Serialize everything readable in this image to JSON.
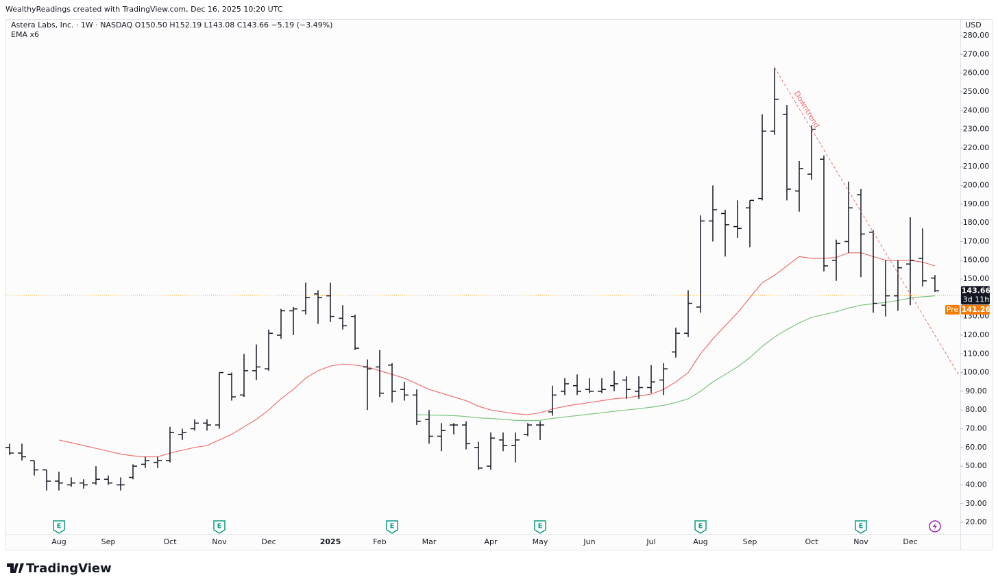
{
  "header": "WealthyReadings created with TradingView.com, Dec 16, 2025 10:20 UTC",
  "brand": "TradingView",
  "chart_data": {
    "type": "ohlc",
    "legend_line": "Astera Labs, Inc. · 1W · NASDAQ  O150.50  H152.19  L143.08  C143.66  −5.19 (−3.49%)",
    "indicator": "EMA x6",
    "currency": "USD",
    "categories": [
      null,
      null,
      null,
      null,
      "Aug",
      null,
      null,
      null,
      "Sep",
      null,
      null,
      null,
      null,
      "Oct",
      null,
      null,
      null,
      "Nov",
      null,
      null,
      null,
      "Dec",
      null,
      null,
      null,
      null,
      "2025",
      null,
      null,
      null,
      "Feb",
      null,
      null,
      null,
      "Mar",
      null,
      null,
      null,
      null,
      "Apr",
      null,
      null,
      null,
      "May",
      null,
      null,
      null,
      "Jun",
      null,
      null,
      null,
      null,
      "Jul",
      null,
      null,
      null,
      "Aug",
      null,
      null,
      null,
      "Sep",
      null,
      null,
      null,
      null,
      "Oct",
      null,
      null,
      null,
      "Nov",
      null,
      null,
      null,
      "Dec",
      null,
      null
    ],
    "open": [
      60,
      57,
      53,
      48,
      42,
      40,
      41,
      41,
      43,
      40,
      44,
      51,
      52,
      53,
      67,
      70,
      73,
      72,
      99,
      88,
      101,
      102,
      120,
      133,
      133,
      142,
      141,
      129,
      130,
      103,
      103,
      104,
      91,
      88,
      75,
      66,
      72,
      72,
      60,
      50,
      64,
      61,
      67,
      72,
      79,
      90,
      93,
      91,
      90,
      93,
      96,
      90,
      92,
      96,
      111,
      121,
      135,
      181,
      185,
      178,
      188,
      193,
      229,
      238,
      197,
      206,
      214,
      160,
      170,
      195,
      175,
      136,
      141,
      158,
      161,
      150.5
    ],
    "high": [
      62,
      62,
      53,
      48,
      47,
      44,
      43,
      50,
      45,
      44,
      51,
      55,
      55,
      71,
      70,
      75,
      75,
      100,
      100,
      110,
      115,
      123,
      134,
      135,
      148,
      144,
      148,
      136,
      131,
      107,
      112,
      105,
      95,
      91,
      80,
      73,
      73,
      74,
      63,
      68,
      68,
      68,
      73,
      74,
      93,
      97,
      99,
      97,
      97,
      101,
      98,
      98,
      104,
      105,
      124,
      144,
      184,
      200,
      187,
      192,
      192,
      238,
      263,
      243,
      213,
      232,
      216,
      171,
      202,
      198,
      176,
      160,
      160,
      183,
      177,
      152.19
    ],
    "low": [
      56,
      53,
      45,
      37,
      37,
      39,
      38,
      40,
      40,
      37,
      43,
      49,
      49,
      52,
      64,
      69,
      69,
      70,
      85,
      87,
      96,
      101,
      118,
      120,
      131,
      126,
      127,
      123,
      112,
      80,
      87,
      84,
      85,
      72,
      62,
      58,
      67,
      59,
      48,
      48,
      58,
      52,
      66,
      64,
      77,
      88,
      88,
      89,
      89,
      90,
      86,
      86,
      89,
      88,
      108,
      119,
      132,
      170,
      162,
      172,
      167,
      192,
      227,
      192,
      186,
      203,
      154,
      149,
      164,
      151,
      132,
      130,
      133,
      136,
      146,
      143.08
    ],
    "close": [
      57,
      55,
      48,
      42,
      41,
      41,
      40,
      43,
      41,
      40,
      50,
      53,
      53,
      68,
      68,
      73,
      72,
      100,
      87,
      101,
      103,
      121,
      133,
      134,
      140,
      140,
      130,
      125,
      113,
      102,
      89,
      90,
      88,
      74,
      66,
      69,
      72,
      62,
      49,
      65,
      61,
      64,
      72,
      72,
      88,
      94,
      90,
      90,
      91,
      94,
      91,
      92,
      95,
      102,
      121,
      137,
      181,
      187,
      179,
      177,
      192,
      229,
      246,
      198,
      209,
      230,
      157,
      169,
      188,
      174,
      137,
      141,
      156,
      160,
      149,
      143.66
    ],
    "bar_color": "#131722",
    "series": [
      {
        "color": "#ef6f6f",
        "values": [
          null,
          null,
          null,
          null,
          64,
          62.5,
          61,
          59.5,
          58,
          56.5,
          55.5,
          55,
          55,
          57,
          58.5,
          60,
          61,
          64,
          67,
          71,
          75,
          80,
          86,
          91,
          97,
          101,
          103.5,
          104.5,
          104,
          103,
          101,
          99,
          97,
          94,
          91,
          89,
          87,
          85,
          82,
          80,
          79,
          78,
          77.5,
          78.5,
          80.5,
          82,
          83,
          84,
          85,
          86,
          86.5,
          87.5,
          88.5,
          91,
          95,
          100,
          110,
          118,
          125,
          132,
          140,
          148,
          152,
          157,
          162,
          161,
          161,
          161.5,
          164,
          164,
          162,
          160,
          160,
          160,
          159,
          157
        ]
      },
      {
        "color": "#7cc47f",
        "values": [
          null,
          null,
          null,
          null,
          null,
          null,
          null,
          null,
          null,
          null,
          null,
          null,
          null,
          null,
          null,
          null,
          null,
          null,
          null,
          null,
          null,
          null,
          null,
          null,
          null,
          null,
          null,
          null,
          null,
          null,
          null,
          null,
          null,
          77.5,
          77.3,
          77.2,
          77,
          76.5,
          75.8,
          75.5,
          75,
          74.5,
          74.3,
          74.5,
          75.5,
          76.3,
          77,
          77.8,
          78.5,
          79.3,
          80,
          80.7,
          81.5,
          82.5,
          84,
          86,
          90,
          95,
          99,
          103,
          108,
          114,
          119,
          123,
          126.5,
          129.5,
          131,
          132.5,
          134.5,
          136,
          136.8,
          137.5,
          138.5,
          139.8,
          140.5,
          141
        ]
      }
    ],
    "ylim": [
      13.8,
      288.8
    ],
    "yticks": [
      {
        "value": 20,
        "label": "20.00"
      },
      {
        "value": 30,
        "label": "30.00"
      },
      {
        "value": 40,
        "label": "40.00"
      },
      {
        "value": 50,
        "label": "50.00"
      },
      {
        "value": 60,
        "label": "60.00"
      },
      {
        "value": 70,
        "label": "70.00"
      },
      {
        "value": 80,
        "label": "80.00"
      },
      {
        "value": 90,
        "label": "90.00"
      },
      {
        "value": 100,
        "label": "100.00"
      },
      {
        "value": 110,
        "label": "110.00"
      },
      {
        "value": 120,
        "label": "120.00"
      },
      {
        "value": 130,
        "label": "130.00"
      },
      {
        "value": 140,
        "label": "140.00"
      },
      {
        "value": 150,
        "label": "150.00"
      },
      {
        "value": 160,
        "label": "160.00"
      },
      {
        "value": 170,
        "label": "170.00"
      },
      {
        "value": 180,
        "label": "180.00"
      },
      {
        "value": 190,
        "label": "190.00"
      },
      {
        "value": 200,
        "label": "200.00"
      },
      {
        "value": 210,
        "label": "210.00"
      },
      {
        "value": 220,
        "label": "220.00"
      },
      {
        "value": 230,
        "label": "230.00"
      },
      {
        "value": 240,
        "label": "240.00"
      },
      {
        "value": 250,
        "label": "250.00"
      },
      {
        "value": 260,
        "label": "260.00"
      },
      {
        "value": 270,
        "label": "270.00"
      },
      {
        "value": 280,
        "label": "280.00"
      }
    ],
    "last_price": 143.66,
    "countdown": "3d 11h",
    "pre_label": "Pre",
    "pre_price": 141.26,
    "trendline": {
      "text": "Downtrend",
      "x": [
        62,
        77
      ],
      "y": [
        263,
        98
      ],
      "color": "#ef6f6f"
    },
    "events": [
      {
        "index": 4,
        "label": "E"
      },
      {
        "index": 17,
        "label": "E"
      },
      {
        "index": 31,
        "label": "E"
      },
      {
        "index": 43,
        "label": "E"
      },
      {
        "index": 56,
        "label": "E"
      },
      {
        "index": 69,
        "label": "E"
      }
    ],
    "lightning_index": 75
  }
}
